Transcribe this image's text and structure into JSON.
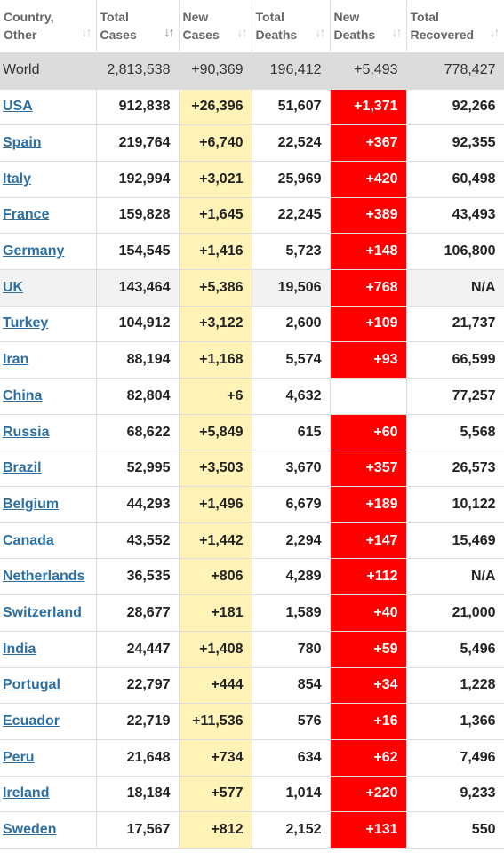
{
  "headers": [
    {
      "line1": "Country,",
      "line2": "Other",
      "sort": "↓↑",
      "active": false
    },
    {
      "line1": "Total",
      "line2": "Cases",
      "sort": "↓↑",
      "active": true
    },
    {
      "line1": "New",
      "line2": "Cases",
      "sort": "↓↑",
      "active": false
    },
    {
      "line1": "Total",
      "line2": "Deaths",
      "sort": "↓↑",
      "active": false
    },
    {
      "line1": "New",
      "line2": "Deaths",
      "sort": "↓↑",
      "active": false
    },
    {
      "line1": "Total",
      "line2": "Recovered",
      "sort": "↓↑",
      "active": false
    }
  ],
  "world": {
    "country": "World",
    "total_cases": "2,813,538",
    "new_cases": "+90,369",
    "total_deaths": "196,412",
    "new_deaths": "+5,493",
    "total_recovered": "778,427"
  },
  "rows": [
    {
      "country": "USA",
      "total_cases": "912,838",
      "new_cases": "+26,396",
      "total_deaths": "51,607",
      "new_deaths": "+1,371",
      "total_recovered": "92,266"
    },
    {
      "country": "Spain",
      "total_cases": "219,764",
      "new_cases": "+6,740",
      "total_deaths": "22,524",
      "new_deaths": "+367",
      "total_recovered": "92,355"
    },
    {
      "country": "Italy",
      "total_cases": "192,994",
      "new_cases": "+3,021",
      "total_deaths": "25,969",
      "new_deaths": "+420",
      "total_recovered": "60,498"
    },
    {
      "country": "France",
      "total_cases": "159,828",
      "new_cases": "+1,645",
      "total_deaths": "22,245",
      "new_deaths": "+389",
      "total_recovered": "43,493"
    },
    {
      "country": "Germany",
      "total_cases": "154,545",
      "new_cases": "+1,416",
      "total_deaths": "5,723",
      "new_deaths": "+148",
      "total_recovered": "106,800"
    },
    {
      "country": "UK",
      "total_cases": "143,464",
      "new_cases": "+5,386",
      "total_deaths": "19,506",
      "new_deaths": "+768",
      "total_recovered": "N/A"
    },
    {
      "country": "Turkey",
      "total_cases": "104,912",
      "new_cases": "+3,122",
      "total_deaths": "2,600",
      "new_deaths": "+109",
      "total_recovered": "21,737"
    },
    {
      "country": "Iran",
      "total_cases": "88,194",
      "new_cases": "+1,168",
      "total_deaths": "5,574",
      "new_deaths": "+93",
      "total_recovered": "66,599"
    },
    {
      "country": "China",
      "total_cases": "82,804",
      "new_cases": "+6",
      "total_deaths": "4,632",
      "new_deaths": "",
      "total_recovered": "77,257"
    },
    {
      "country": "Russia",
      "total_cases": "68,622",
      "new_cases": "+5,849",
      "total_deaths": "615",
      "new_deaths": "+60",
      "total_recovered": "5,568"
    },
    {
      "country": "Brazil",
      "total_cases": "52,995",
      "new_cases": "+3,503",
      "total_deaths": "3,670",
      "new_deaths": "+357",
      "total_recovered": "26,573"
    },
    {
      "country": "Belgium",
      "total_cases": "44,293",
      "new_cases": "+1,496",
      "total_deaths": "6,679",
      "new_deaths": "+189",
      "total_recovered": "10,122"
    },
    {
      "country": "Canada",
      "total_cases": "43,552",
      "new_cases": "+1,442",
      "total_deaths": "2,294",
      "new_deaths": "+147",
      "total_recovered": "15,469"
    },
    {
      "country": "Netherlands",
      "total_cases": "36,535",
      "new_cases": "+806",
      "total_deaths": "4,289",
      "new_deaths": "+112",
      "total_recovered": "N/A"
    },
    {
      "country": "Switzerland",
      "total_cases": "28,677",
      "new_cases": "+181",
      "total_deaths": "1,589",
      "new_deaths": "+40",
      "total_recovered": "21,000"
    },
    {
      "country": "India",
      "total_cases": "24,447",
      "new_cases": "+1,408",
      "total_deaths": "780",
      "new_deaths": "+59",
      "total_recovered": "5,496"
    },
    {
      "country": "Portugal",
      "total_cases": "22,797",
      "new_cases": "+444",
      "total_deaths": "854",
      "new_deaths": "+34",
      "total_recovered": "1,228"
    },
    {
      "country": "Ecuador",
      "total_cases": "22,719",
      "new_cases": "+11,536",
      "total_deaths": "576",
      "new_deaths": "+16",
      "total_recovered": "1,366"
    },
    {
      "country": "Peru",
      "total_cases": "21,648",
      "new_cases": "+734",
      "total_deaths": "634",
      "new_deaths": "+62",
      "total_recovered": "7,496"
    },
    {
      "country": "Ireland",
      "total_cases": "18,184",
      "new_cases": "+577",
      "total_deaths": "1,014",
      "new_deaths": "+220",
      "total_recovered": "9,233"
    },
    {
      "country": "Sweden",
      "total_cases": "17,567",
      "new_cases": "+812",
      "total_deaths": "2,152",
      "new_deaths": "+131",
      "total_recovered": "550"
    }
  ],
  "colors": {
    "new_cases_bg": "#fff3b8",
    "new_deaths_bg": "#ff0000",
    "link": "#2d6fa3",
    "world_row_bg": "#dcdcdc"
  }
}
